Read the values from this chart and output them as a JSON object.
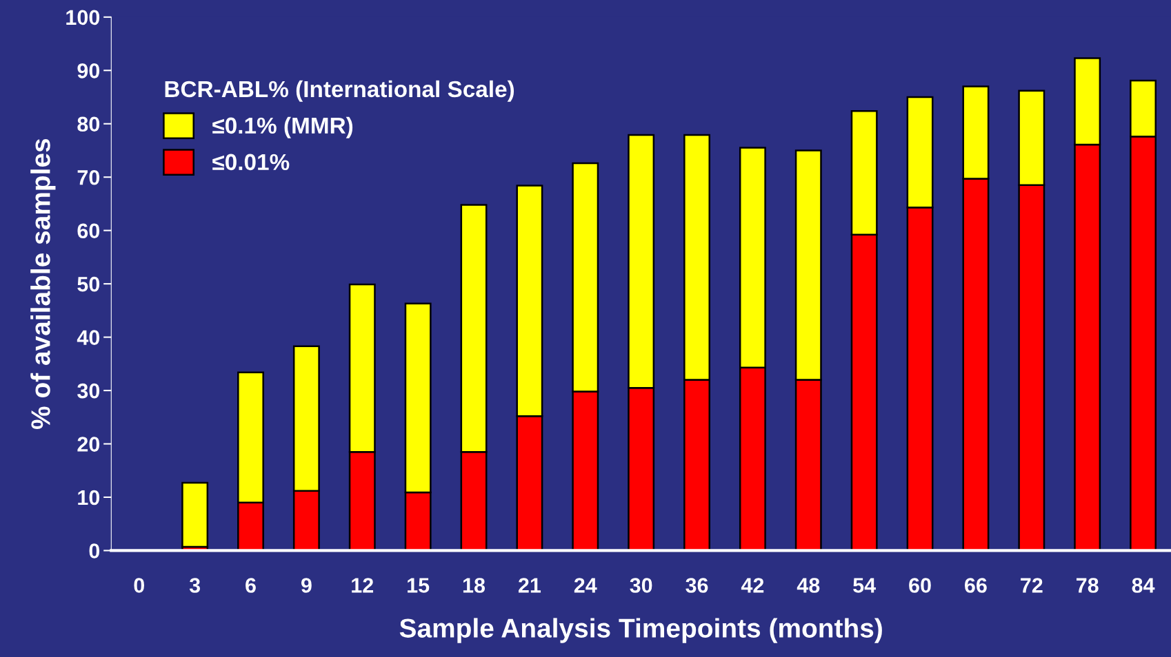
{
  "chart_data": {
    "type": "bar",
    "stacked": true,
    "xlabel": "Sample Analysis Timepoints (months)",
    "ylabel": "% of available samples",
    "legend_title": "BCR-ABL% (International Scale)",
    "legend": "top left",
    "categories": [
      "0",
      "3",
      "6",
      "9",
      "12",
      "15",
      "18",
      "21",
      "24",
      "30",
      "36",
      "42",
      "48",
      "54",
      "60",
      "66",
      "72",
      "78",
      "84"
    ],
    "series": [
      {
        "name": "≤0.01%",
        "color": "#ff0000",
        "values": [
          null,
          0.7,
          9.0,
          11.2,
          18.5,
          10.9,
          18.5,
          25.2,
          29.8,
          30.5,
          32.0,
          34.3,
          32.0,
          59.2,
          64.3,
          69.7,
          68.5,
          76.1,
          77.6
        ]
      },
      {
        "name": "≤0.1% (MMR)",
        "color": "#ffff00",
        "values": [
          null,
          12.0,
          24.4,
          27.1,
          31.4,
          35.4,
          46.3,
          43.2,
          42.8,
          47.4,
          45.9,
          41.2,
          43.0,
          23.2,
          20.7,
          17.3,
          17.7,
          16.2,
          10.5
        ]
      }
    ],
    "ylim": [
      0,
      100
    ],
    "yticks": [
      0,
      10,
      20,
      30,
      40,
      50,
      60,
      70,
      80,
      90,
      100
    ],
    "grid": false
  }
}
